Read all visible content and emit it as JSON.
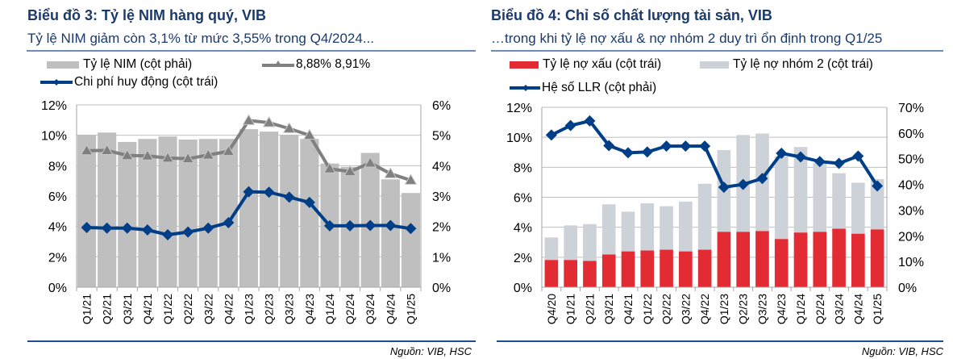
{
  "chart_data": [
    {
      "type": "bar+line",
      "title": "Biểu đồ 3: Tỷ lệ NIM hàng quý, VIB",
      "subtitle": "Tỷ lệ NIM giảm còn 3,1% từ mức 3,55% trong Q4/2024...",
      "source": "Nguồn: VIB, HSC",
      "categories": [
        "Q1/21",
        "Q2/21",
        "Q3/21",
        "Q4/21",
        "Q1/22",
        "Q2/22",
        "Q3/22",
        "Q4/22",
        "Q1/23",
        "Q2/23",
        "Q3/23",
        "Q4/23",
        "Q1/24",
        "Q2/24",
        "Q3/24",
        "Q4/24",
        "Q1/25"
      ],
      "left_axis": {
        "ylim": [
          0,
          12
        ],
        "ticks": [
          "0%",
          "2%",
          "4%",
          "6%",
          "8%",
          "10%",
          "12%"
        ]
      },
      "right_axis": {
        "ylim": [
          0,
          6
        ],
        "ticks": [
          "0%",
          "1%",
          "2%",
          "3%",
          "4%",
          "5%",
          "6%"
        ]
      },
      "series": [
        {
          "name": "Tỷ lệ NIM (cột phải)",
          "type": "bar",
          "axis": "right",
          "color": "#BFBFBF",
          "values": [
            5.02,
            5.09,
            4.78,
            4.88,
            4.96,
            4.86,
            4.88,
            4.88,
            5.2,
            5.12,
            5.02,
            4.88,
            4.07,
            3.96,
            4.42,
            3.55,
            3.1
          ]
        },
        {
          "name": "8,88% 8,91%",
          "type": "line",
          "marker": "triangle",
          "axis": "left",
          "color": "#808080",
          "values": [
            8.99,
            9.0,
            8.67,
            8.64,
            8.5,
            8.46,
            8.7,
            8.94,
            10.97,
            10.83,
            10.44,
            10.0,
            7.79,
            7.61,
            8.18,
            7.47,
            7.04
          ]
        },
        {
          "name": "Chi phí huy động (cột trái)",
          "type": "line",
          "marker": "diamond",
          "axis": "left",
          "color": "#003F87",
          "values": [
            3.93,
            3.89,
            3.89,
            3.77,
            3.45,
            3.63,
            3.89,
            4.25,
            6.28,
            6.25,
            5.93,
            5.58,
            4.04,
            4.04,
            4.06,
            4.06,
            3.86
          ]
        }
      ]
    },
    {
      "type": "stacked-bar+line",
      "title": "Biểu đồ 4: Chỉ số chất lượng tài sản, VIB",
      "subtitle": "…trong khi tỷ lệ nợ xấu & nợ nhóm 2 duy trì ổn định trong Q1/25",
      "source": "Nguồn: VIB, HSC",
      "categories": [
        "Q4/20",
        "Q1/21",
        "Q2/21",
        "Q3/21",
        "Q4/21",
        "Q1/22",
        "Q2/22",
        "Q3/22",
        "Q4/22",
        "Q1/23",
        "Q2/23",
        "Q3/23",
        "Q4/23",
        "Q1/24",
        "Q2/24",
        "Q3/24",
        "Q4/24",
        "Q1/25"
      ],
      "left_axis": {
        "ylim": [
          0,
          12
        ],
        "ticks": [
          "0%",
          "2%",
          "4%",
          "6%",
          "8%",
          "10%",
          "12%"
        ]
      },
      "right_axis": {
        "ylim": [
          0,
          70
        ],
        "ticks": [
          "0%",
          "10%",
          "20%",
          "30%",
          "40%",
          "50%",
          "60%",
          "70%"
        ]
      },
      "series": [
        {
          "name": "Tỷ lệ nợ xấu (cột trái)",
          "type": "bar",
          "axis": "left",
          "color": "#E32B33",
          "values": [
            1.82,
            1.82,
            1.76,
            2.18,
            2.39,
            2.45,
            2.5,
            2.39,
            2.5,
            3.7,
            3.7,
            3.75,
            3.22,
            3.65,
            3.7,
            3.9,
            3.57,
            3.86
          ]
        },
        {
          "name": "Tỷ lệ nợ nhóm 2 (cột trái)",
          "type": "bar",
          "axis": "left",
          "color": "#CDD1D8",
          "values": [
            1.5,
            2.3,
            2.45,
            3.35,
            2.65,
            3.15,
            2.9,
            3.32,
            4.4,
            5.45,
            6.45,
            6.5,
            5.5,
            5.7,
            4.6,
            3.7,
            3.4,
            3.35
          ]
        },
        {
          "name": "Hệ số LLR (cột phải)",
          "type": "line",
          "marker": "diamond",
          "axis": "right",
          "color": "#003F87",
          "values": [
            59.2,
            62.9,
            64.7,
            55.1,
            52.3,
            52.6,
            54.9,
            54.9,
            54.9,
            38.9,
            40.0,
            42.3,
            52.1,
            50.7,
            48.9,
            48.2,
            51.0,
            39.4
          ]
        }
      ]
    }
  ]
}
